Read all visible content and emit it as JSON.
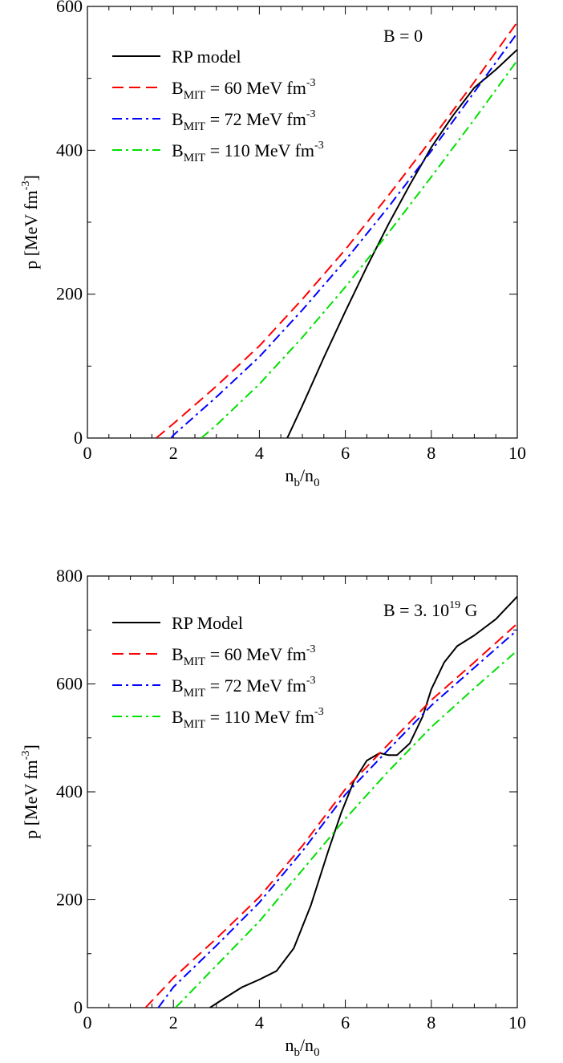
{
  "chart_data": [
    {
      "type": "line",
      "annotation": {
        "main": "B = 0",
        "sup": ""
      },
      "xlabel": {
        "main": "n",
        "sub1": "b",
        "mid": "/n",
        "sub2": "0"
      },
      "ylabel": {
        "main": "p [MeV fm",
        "sup": "-3",
        "end": "]"
      },
      "xlim": [
        0,
        10
      ],
      "ylim": [
        0,
        600
      ],
      "xticks": [
        0,
        2,
        4,
        6,
        8,
        10
      ],
      "yticks": [
        0,
        200,
        400,
        600
      ],
      "xtick_labels": [
        "0",
        "2",
        "4",
        "6",
        "8",
        "10"
      ],
      "ytick_labels": [
        "0",
        "200",
        "400",
        "600"
      ],
      "series": [
        {
          "name": "RP model",
          "legend": {
            "a": "RP model",
            "sub": "",
            "b": "",
            "sup": ""
          },
          "color": "#000000",
          "dash": "solid",
          "x": [
            4.65,
            5.0,
            5.5,
            6.0,
            6.5,
            7.0,
            7.5,
            8.0,
            8.5,
            9.0,
            9.5,
            10.0
          ],
          "y": [
            0,
            45,
            112,
            176,
            238,
            297,
            352,
            404,
            448,
            487,
            512,
            540
          ]
        },
        {
          "name": "B_MIT = 60 MeV fm-3",
          "legend": {
            "a": "B",
            "sub": "MIT",
            "b": "  = 60 MeV fm",
            "sup": "-3"
          },
          "color": "#ff0000",
          "dash": "dash",
          "x": [
            1.6,
            2,
            3,
            4,
            5,
            6,
            7,
            8,
            9,
            10
          ],
          "y": [
            0,
            20,
            72,
            128,
            193,
            262,
            337,
            415,
            495,
            578
          ]
        },
        {
          "name": "B_MIT = 72 MeV fm-3",
          "legend": {
            "a": "B",
            "sub": "MIT",
            "b": " = 72 MeV fm",
            "sup": "-3"
          },
          "color": "#0000ff",
          "dash": "dashdot",
          "x": [
            1.95,
            2,
            3,
            4,
            5,
            6,
            7,
            8,
            9,
            10
          ],
          "y": [
            0,
            4,
            57,
            113,
            178,
            247,
            321,
            399,
            481,
            563
          ]
        },
        {
          "name": "B_MIT = 110 MeV fm-3",
          "legend": {
            "a": "B",
            "sub": "MIT",
            "b": " = 110 MeV fm",
            "sup": "-3"
          },
          "color": "#00e000",
          "dash": "dashdot",
          "x": [
            2.65,
            3,
            4,
            5,
            6,
            7,
            8,
            9,
            10
          ],
          "y": [
            0,
            18,
            75,
            140,
            210,
            285,
            363,
            443,
            525
          ]
        }
      ]
    },
    {
      "type": "line",
      "annotation": {
        "main": "B = 3.  10",
        "sup": "19",
        "end": " G"
      },
      "xlabel": {
        "main": "n",
        "sub1": "b",
        "mid": "/n",
        "sub2": "0"
      },
      "ylabel": {
        "main": "p [MeV fm",
        "sup": "-3",
        "end": "]"
      },
      "xlim": [
        0,
        10
      ],
      "ylim": [
        0,
        800
      ],
      "xticks": [
        0,
        2,
        4,
        6,
        8,
        10
      ],
      "yticks": [
        0,
        200,
        400,
        600,
        800
      ],
      "xtick_labels": [
        "0",
        "2",
        "4",
        "6",
        "8",
        "10"
      ],
      "ytick_labels": [
        "0",
        "200",
        "400",
        "600",
        "800"
      ],
      "series": [
        {
          "name": "RP Model",
          "legend": {
            "a": "RP Model",
            "sub": "",
            "b": "",
            "sup": ""
          },
          "color": "#000000",
          "dash": "solid",
          "x": [
            2.85,
            3.2,
            3.6,
            4.0,
            4.4,
            4.8,
            5.2,
            5.6,
            5.9,
            6.2,
            6.5,
            6.8,
            7.0,
            7.2,
            7.5,
            7.8,
            8.0,
            8.3,
            8.6,
            9.0,
            9.5,
            10.0
          ],
          "y": [
            0,
            18,
            38,
            52,
            68,
            110,
            190,
            290,
            360,
            420,
            458,
            472,
            468,
            468,
            490,
            540,
            590,
            640,
            670,
            690,
            720,
            762
          ]
        },
        {
          "name": "B_MIT = 60 MeV fm-3",
          "legend": {
            "a": "B",
            "sub": "MIT",
            "b": " = 60 MeV fm",
            "sup": "-3"
          },
          "color": "#ff0000",
          "dash": "dash",
          "x": [
            1.35,
            2,
            3,
            4,
            5,
            6,
            7,
            8,
            9,
            10
          ],
          "y": [
            0,
            55,
            128,
            205,
            300,
            405,
            488,
            570,
            640,
            712
          ]
        },
        {
          "name": "B_MIT = 72 MeV fm-3",
          "legend": {
            "a": "B",
            "sub": "MIT",
            "b": " = 72 MeV fm",
            "sup": "-3"
          },
          "color": "#0000ff",
          "dash": "dashdot",
          "x": [
            1.65,
            2,
            3,
            4,
            5,
            6,
            7,
            8,
            9,
            10
          ],
          "y": [
            0,
            38,
            115,
            195,
            290,
            395,
            478,
            560,
            630,
            700
          ]
        },
        {
          "name": "B_MIT = 110 MeV fm-3",
          "legend": {
            "a": "B",
            "sub": "MIT",
            "b": " = 110 MeV fm",
            "sup": "-3"
          },
          "color": "#00e000",
          "dash": "dashdot",
          "x": [
            2.05,
            3,
            4,
            5,
            6,
            7,
            8,
            9,
            10
          ],
          "y": [
            0,
            78,
            160,
            255,
            350,
            438,
            520,
            592,
            662
          ]
        }
      ]
    }
  ]
}
